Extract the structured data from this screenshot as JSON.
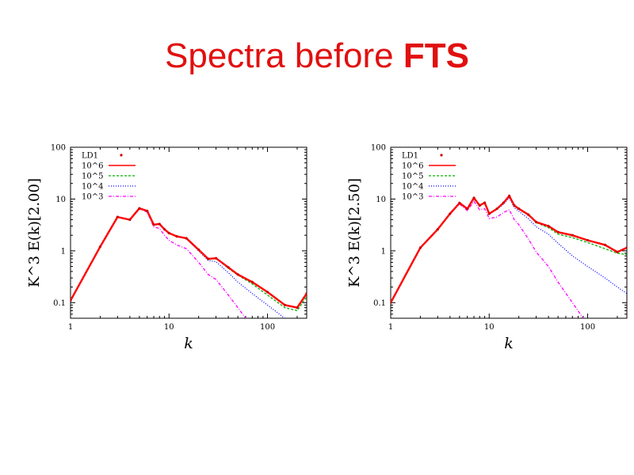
{
  "slide": {
    "title_regular": "Spectra before ",
    "title_bold": "FTS"
  },
  "chart_data": [
    {
      "type": "line",
      "ylabel": "K^3 E(k)[2.00]",
      "xlabel": "k",
      "xscale": "log",
      "yscale": "log",
      "xlim": [
        1,
        250
      ],
      "ylim": [
        0.05,
        100
      ],
      "x_ticks": [
        "1",
        "10",
        "100"
      ],
      "y_ticks": [
        "0.1",
        "1",
        "10",
        "100"
      ],
      "legend_position": "top-left",
      "series": [
        {
          "name": "LD1",
          "style": "points",
          "color": "#cc0000",
          "x": [
            1,
            2,
            3,
            4,
            5,
            6,
            7,
            8,
            9,
            10,
            12,
            15,
            20,
            25,
            30,
            40,
            50,
            70,
            100,
            150,
            200,
            250
          ],
          "y": [
            0.11,
            1.2,
            4.5,
            4.0,
            6.6,
            5.9,
            3.2,
            3.3,
            2.6,
            2.2,
            1.9,
            1.75,
            1.05,
            0.7,
            0.72,
            0.48,
            0.35,
            0.25,
            0.16,
            0.09,
            0.08,
            0.15
          ]
        },
        {
          "name": "10^6",
          "style": "solid",
          "color": "#ff0000",
          "x": [
            1,
            2,
            3,
            4,
            5,
            6,
            7,
            8,
            9,
            10,
            12,
            15,
            20,
            25,
            30,
            40,
            50,
            70,
            100,
            150,
            200,
            250
          ],
          "y": [
            0.11,
            1.2,
            4.5,
            4.0,
            6.6,
            5.9,
            3.2,
            3.3,
            2.6,
            2.2,
            1.9,
            1.75,
            1.05,
            0.7,
            0.72,
            0.48,
            0.35,
            0.25,
            0.16,
            0.09,
            0.08,
            0.15
          ]
        },
        {
          "name": "10^5",
          "style": "dashed",
          "color": "#00b000",
          "x": [
            1,
            2,
            3,
            4,
            5,
            6,
            7,
            8,
            9,
            10,
            12,
            15,
            20,
            25,
            30,
            40,
            50,
            70,
            100,
            150,
            200,
            250
          ],
          "y": [
            0.11,
            1.2,
            4.5,
            4.0,
            6.6,
            5.9,
            3.2,
            3.3,
            2.6,
            2.2,
            1.9,
            1.75,
            1.05,
            0.7,
            0.72,
            0.46,
            0.34,
            0.23,
            0.14,
            0.08,
            0.07,
            0.13
          ]
        },
        {
          "name": "10^4",
          "style": "dotted",
          "color": "#0000ff",
          "x": [
            1,
            2,
            3,
            4,
            5,
            6,
            7,
            8,
            9,
            10,
            12,
            15,
            20,
            25,
            30,
            40,
            50,
            70,
            100,
            150,
            200
          ],
          "y": [
            0.11,
            1.2,
            4.5,
            4.0,
            6.6,
            5.9,
            3.2,
            3.3,
            2.6,
            2.2,
            1.9,
            1.7,
            1.0,
            0.65,
            0.62,
            0.38,
            0.25,
            0.15,
            0.09,
            0.05,
            0.035
          ]
        },
        {
          "name": "10^3",
          "style": "dashdot",
          "color": "#ff00ff",
          "x": [
            1,
            2,
            3,
            4,
            5,
            6,
            7,
            8,
            9,
            10,
            12,
            15,
            20,
            25,
            30,
            40,
            50,
            60
          ],
          "y": [
            0.11,
            1.2,
            4.5,
            4.0,
            6.5,
            5.6,
            2.9,
            2.7,
            2.0,
            1.6,
            1.3,
            1.1,
            0.6,
            0.35,
            0.28,
            0.14,
            0.08,
            0.05
          ]
        }
      ]
    },
    {
      "type": "line",
      "ylabel": "K^3 E(k)[2.50]",
      "xlabel": "k",
      "xscale": "log",
      "yscale": "log",
      "xlim": [
        1,
        250
      ],
      "ylim": [
        0.05,
        100
      ],
      "x_ticks": [
        "1",
        "10",
        "100"
      ],
      "y_ticks": [
        "0.1",
        "1",
        "10",
        "100"
      ],
      "legend_position": "top-left",
      "series": [
        {
          "name": "LD1",
          "style": "points",
          "color": "#cc0000",
          "x": [
            1,
            2,
            3,
            4,
            5,
            6,
            7,
            8,
            9,
            10,
            12,
            14,
            16,
            18,
            20,
            25,
            30,
            40,
            50,
            70,
            100,
            150,
            200,
            250
          ],
          "y": [
            0.1,
            1.15,
            2.6,
            5.2,
            8.4,
            6.5,
            10.5,
            7.5,
            8.5,
            5.2,
            6.5,
            8.5,
            11.5,
            7.5,
            6.5,
            5.0,
            3.6,
            3.0,
            2.3,
            2.0,
            1.6,
            1.3,
            0.95,
            1.15
          ]
        },
        {
          "name": "10^6",
          "style": "solid",
          "color": "#ff0000",
          "x": [
            1,
            2,
            3,
            4,
            5,
            6,
            7,
            8,
            9,
            10,
            12,
            14,
            16,
            18,
            20,
            25,
            30,
            40,
            50,
            70,
            100,
            150,
            200,
            250
          ],
          "y": [
            0.1,
            1.15,
            2.6,
            5.2,
            8.4,
            6.5,
            10.5,
            7.5,
            8.5,
            5.2,
            6.5,
            8.5,
            11.5,
            7.5,
            6.5,
            5.0,
            3.6,
            3.0,
            2.3,
            2.0,
            1.6,
            1.3,
            0.95,
            1.15
          ]
        },
        {
          "name": "10^5",
          "style": "dashed",
          "color": "#00b000",
          "x": [
            1,
            2,
            3,
            4,
            5,
            6,
            7,
            8,
            9,
            10,
            12,
            14,
            16,
            18,
            20,
            25,
            30,
            40,
            50,
            70,
            100,
            150,
            200,
            250
          ],
          "y": [
            0.1,
            1.15,
            2.6,
            5.2,
            8.4,
            6.5,
            10.5,
            7.5,
            8.5,
            5.2,
            6.5,
            8.5,
            11.5,
            7.5,
            6.5,
            5.0,
            3.5,
            2.8,
            2.1,
            1.8,
            1.45,
            1.1,
            0.9,
            0.85
          ]
        },
        {
          "name": "10^4",
          "style": "dotted",
          "color": "#0000ff",
          "x": [
            1,
            2,
            3,
            4,
            5,
            6,
            7,
            8,
            9,
            10,
            12,
            14,
            16,
            18,
            20,
            25,
            30,
            40,
            50,
            70,
            100,
            150,
            200,
            250
          ],
          "y": [
            0.1,
            1.15,
            2.6,
            5.2,
            8.4,
            6.5,
            10.5,
            7.5,
            8.5,
            5.2,
            6.3,
            8.0,
            10.5,
            6.8,
            5.8,
            4.2,
            2.9,
            2.1,
            1.4,
            0.8,
            0.5,
            0.3,
            0.2,
            0.15
          ]
        },
        {
          "name": "10^3",
          "style": "dashdot",
          "color": "#ff00ff",
          "x": [
            1,
            2,
            3,
            4,
            5,
            6,
            7,
            8,
            9,
            10,
            12,
            14,
            16,
            18,
            20,
            25,
            30,
            40,
            50,
            70,
            90
          ],
          "y": [
            0.1,
            1.15,
            2.6,
            5.2,
            8.0,
            6.0,
            9.0,
            6.2,
            6.5,
            4.2,
            4.5,
            5.5,
            6.2,
            4.0,
            3.2,
            1.7,
            0.95,
            0.5,
            0.25,
            0.1,
            0.05
          ]
        }
      ]
    }
  ]
}
